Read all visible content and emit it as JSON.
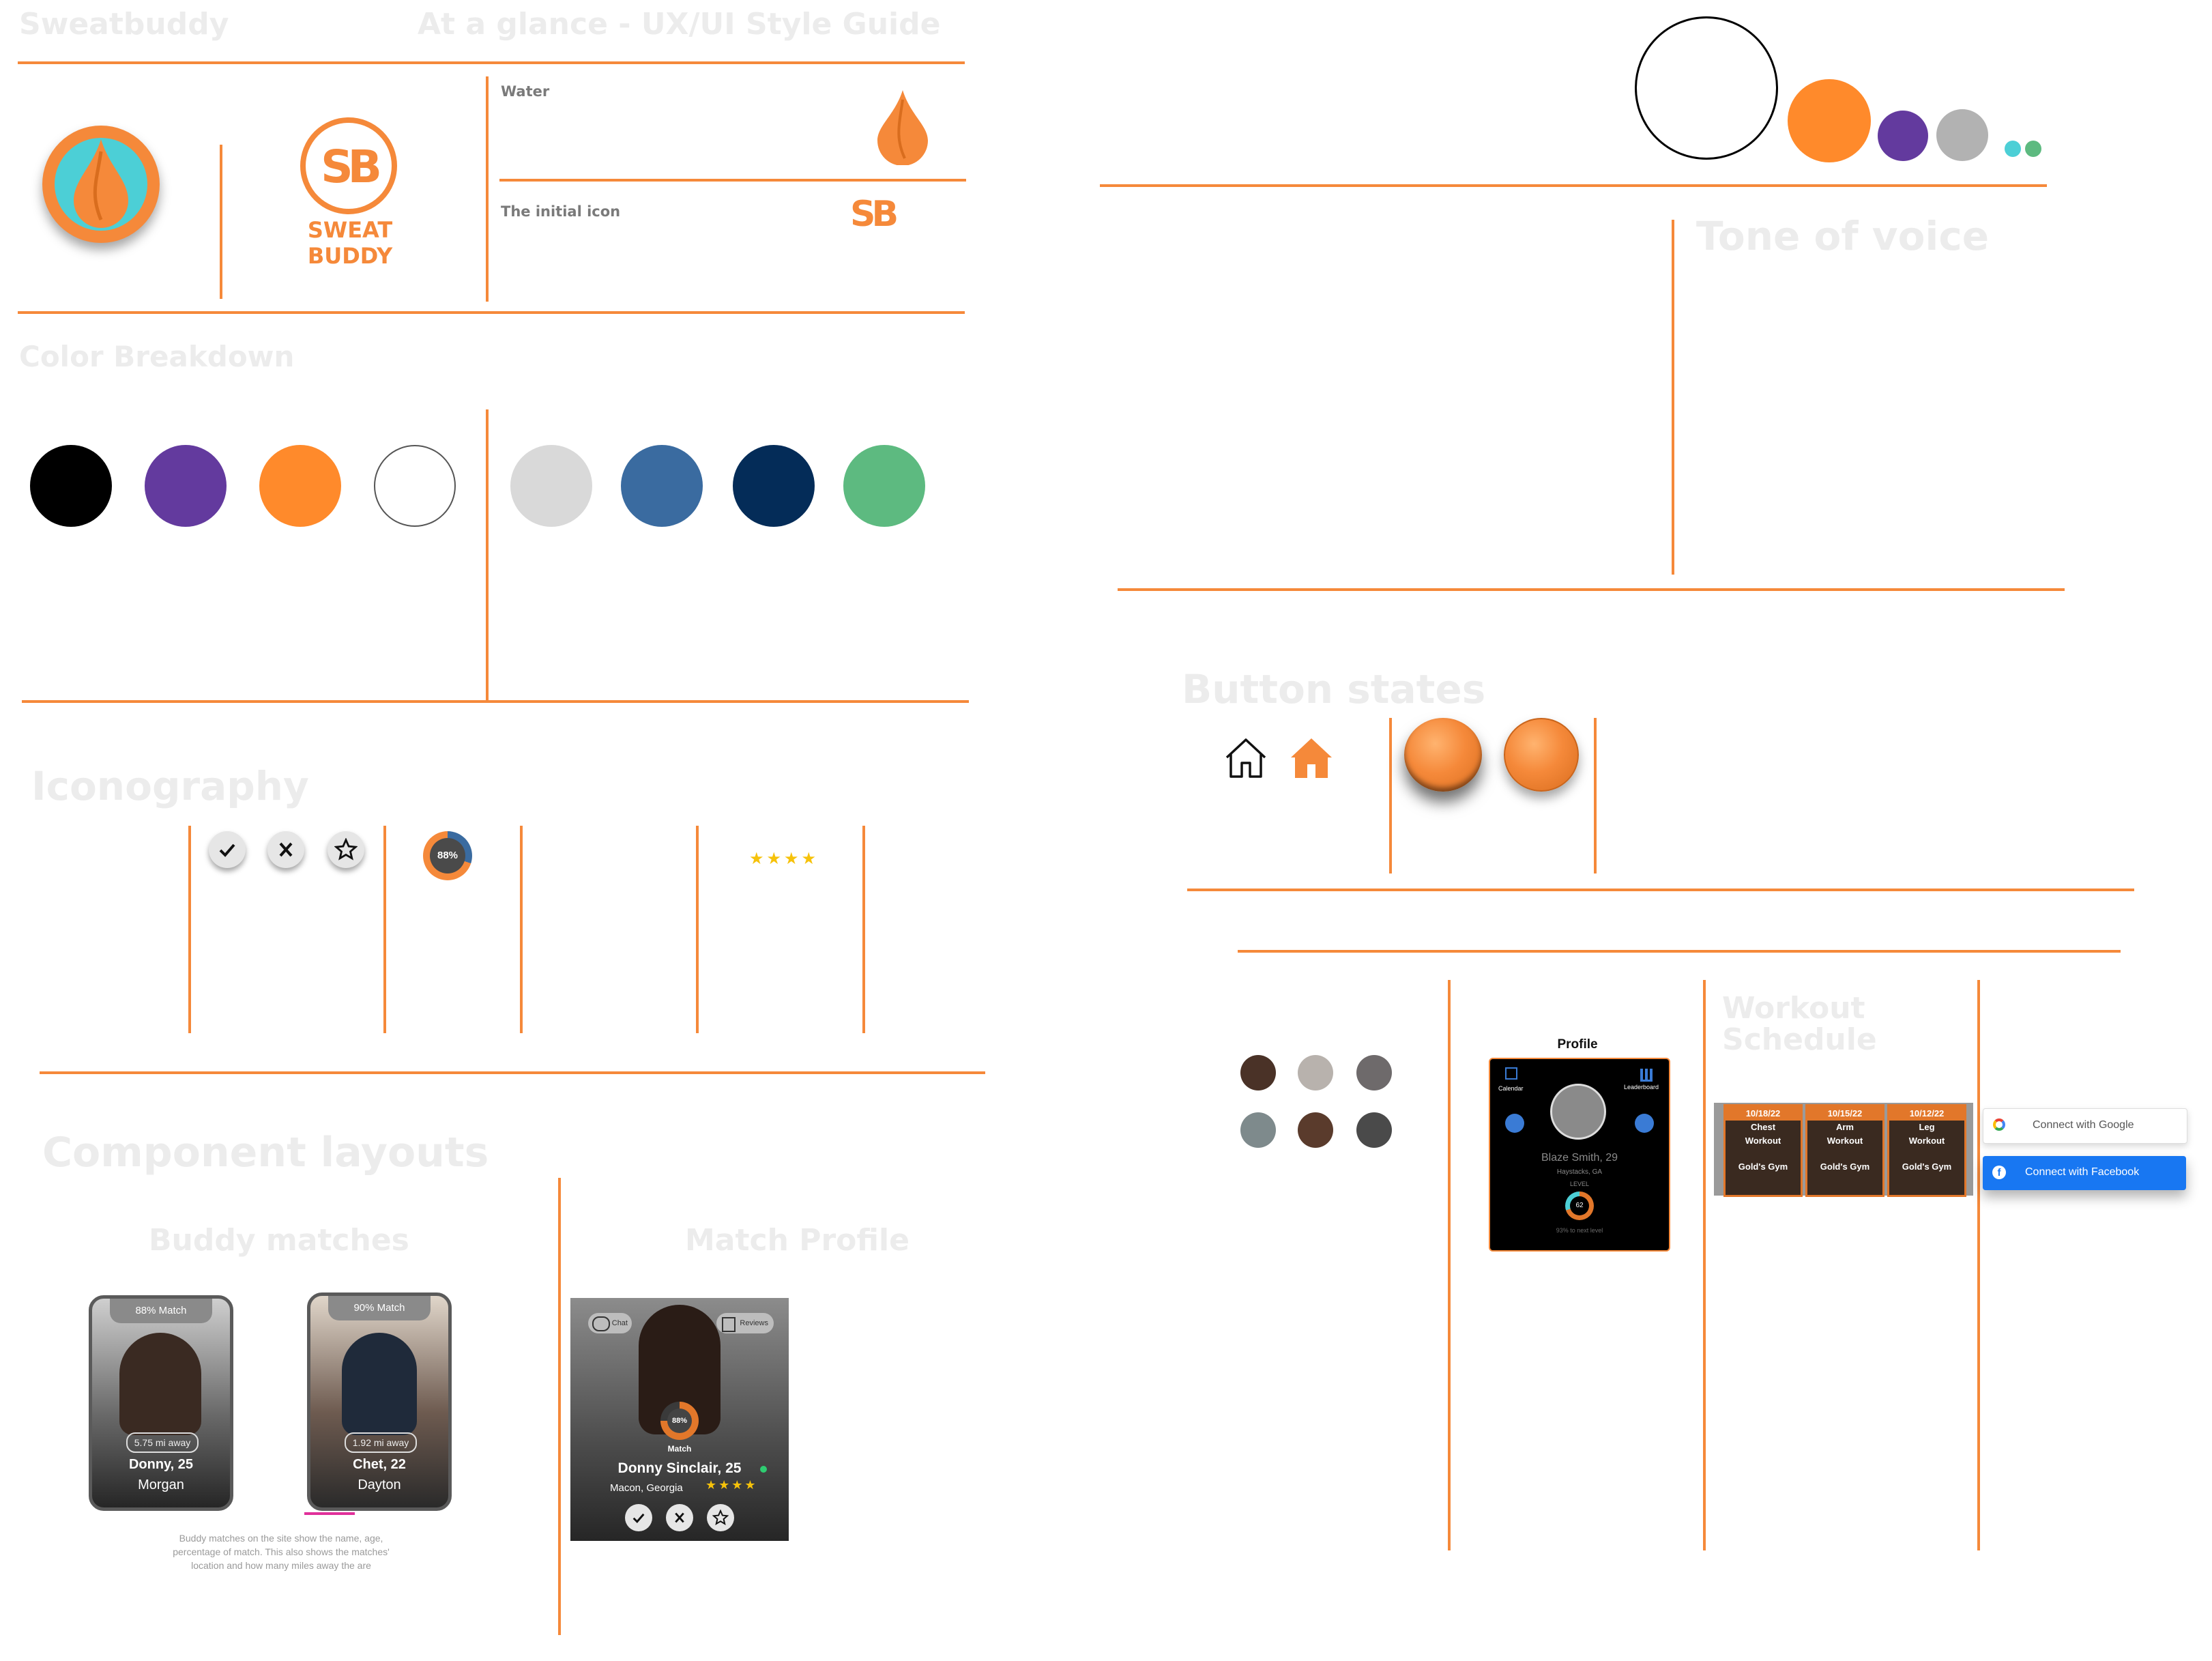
{
  "header": {
    "app_name": "Sweatbuddy",
    "guide_title": "At a glance - UX/UI Style Guide"
  },
  "logo": {
    "brand_wordmark": "SWEAT BUDDY",
    "monogram": "SB",
    "water_label": "Water",
    "initial_icon_label": "The initial icon"
  },
  "sections": {
    "color_breakdown": "Color Breakdown",
    "iconography": "Iconography",
    "component_layouts": "Component layouts",
    "buddy_matches": "Buddy matches",
    "match_profile": "Match Profile",
    "tone_of_voice": "Tone of voice",
    "button_states": "Button states",
    "workout_schedule_line1": "Workout",
    "workout_schedule_line2": "Schedule"
  },
  "colors": {
    "primary": [
      "#000000",
      "#633A9E",
      "#FF8A2B",
      "#FFFFFF"
    ],
    "secondary": [
      "#D9D9D9",
      "#3A6BA0",
      "#042C58",
      "#5DBA80"
    ],
    "accent": "#F5893A",
    "teal": "#4CCFD6"
  },
  "iconography": {
    "icons": [
      "check-icon",
      "x-icon",
      "star-icon"
    ],
    "match_badge": "88%",
    "stars": "★★★★"
  },
  "buddy_cards": [
    {
      "match": "88% Match",
      "distance": "5.75 mi away",
      "name": "Donny, 25",
      "city": "Morgan"
    },
    {
      "match": "90% Match",
      "distance": "1.92 mi away",
      "name": "Chet, 22",
      "city": "Dayton"
    }
  ],
  "buddy_caption": "Buddy matches on the site show the name, age, percentage of match. This also shows the matches' location and how many miles away the are",
  "match_profile": {
    "chat": "Chat",
    "reviews": "Reviews",
    "match_percent": "88%",
    "match_label": "Match",
    "name": "Donny Sinclair, 25",
    "location": "Macon, Georgia",
    "stars": "★★★★"
  },
  "profile_screen": {
    "title": "Profile",
    "calendar": "Calendar",
    "leaderboard": "Leaderboard",
    "name": "Blaze Smith, 29",
    "location": "Haystacks, GA",
    "level_label": "LEVEL",
    "level": "62",
    "progress_text": "93% to next level"
  },
  "schedule": [
    {
      "date": "10/18/22",
      "line1": "Chest",
      "line2": "Workout",
      "gym": "Gold's Gym"
    },
    {
      "date": "10/15/22",
      "line1": "Arm",
      "line2": "Workout",
      "gym": "Gold's Gym"
    },
    {
      "date": "10/12/22",
      "line1": "Leg",
      "line2": "Workout",
      "gym": "Gold's Gym"
    }
  ],
  "auth": {
    "google": "Connect with Google",
    "facebook": "Connect with Facebook"
  }
}
